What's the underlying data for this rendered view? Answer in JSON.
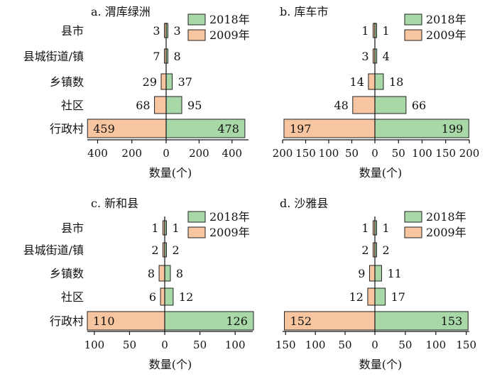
{
  "colors": {
    "y2018": "#a8d8a8",
    "y2009": "#f7c59f",
    "stroke": "#222222"
  },
  "chart_data": [
    {
      "type": "bar",
      "title": "a. 渭库绿洲",
      "xlabel": "数量(个)",
      "categories": [
        "县市",
        "县城街道/镇",
        "乡镇数",
        "社区",
        "行政村"
      ],
      "series": [
        {
          "name": "2018年",
          "values": [
            3,
            8,
            37,
            95,
            478
          ]
        },
        {
          "name": "2009年",
          "values": [
            3,
            7,
            29,
            68,
            459
          ]
        }
      ],
      "xlim": [
        -460,
        500
      ],
      "xticks": [
        -400,
        -200,
        0,
        200,
        400
      ],
      "xtick_labels": [
        "400",
        "200",
        "0",
        "200",
        "400"
      ]
    },
    {
      "type": "bar",
      "title": "b. 库车市",
      "xlabel": "数量(个)",
      "categories": [
        "县市",
        "县城街道/镇",
        "乡镇数",
        "社区",
        "行政村"
      ],
      "series": [
        {
          "name": "2018年",
          "values": [
            1,
            4,
            18,
            66,
            199
          ]
        },
        {
          "name": "2009年",
          "values": [
            1,
            3,
            14,
            48,
            197
          ]
        }
      ],
      "xlim": [
        -200,
        200
      ],
      "xticks": [
        -200,
        -150,
        -100,
        -50,
        0,
        50,
        100,
        150,
        200
      ],
      "xtick_labels": [
        "200",
        "150",
        "100",
        "50",
        "0",
        "50",
        "100",
        "150",
        "200"
      ]
    },
    {
      "type": "bar",
      "title": "c. 新和县",
      "xlabel": "数量(个)",
      "categories": [
        "县市",
        "县城街道/镇",
        "乡镇数",
        "社区",
        "行政村"
      ],
      "series": [
        {
          "name": "2018年",
          "values": [
            1,
            2,
            8,
            12,
            126
          ]
        },
        {
          "name": "2009年",
          "values": [
            1,
            2,
            8,
            6,
            110
          ]
        }
      ],
      "xlim": [
        -110,
        125
      ],
      "xticks": [
        -100,
        -50,
        0,
        50,
        100
      ],
      "xtick_labels": [
        "100",
        "50",
        "0",
        "50",
        "100"
      ]
    },
    {
      "type": "bar",
      "title": "d. 沙雅县",
      "xlabel": "数量(个)",
      "categories": [
        "县市",
        "县城街道/镇",
        "乡镇数",
        "社区",
        "行政村"
      ],
      "series": [
        {
          "name": "2018年",
          "values": [
            1,
            2,
            11,
            17,
            153
          ]
        },
        {
          "name": "2009年",
          "values": [
            1,
            2,
            9,
            12,
            152
          ]
        }
      ],
      "xlim": [
        -155,
        155
      ],
      "xticks": [
        -150,
        -100,
        -50,
        0,
        50,
        100,
        150
      ],
      "xtick_labels": [
        "150",
        "100",
        "50",
        "0",
        "50",
        "100",
        "150"
      ]
    }
  ]
}
